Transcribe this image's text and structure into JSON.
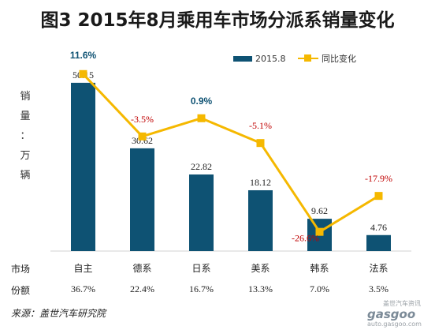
{
  "title": "图3  2015年8月乘用车市场分派系销量变化",
  "ylabel_chars": [
    "销",
    "量",
    "：",
    "万",
    "辆"
  ],
  "legend": {
    "bar_label": "2015.8",
    "line_label": "同比变化"
  },
  "row_labels": {
    "market": "市场",
    "share": "份额"
  },
  "shares": [
    "36.7%",
    "22.4%",
    "16.7%",
    "13.3%",
    "7.0%",
    "3.5%"
  ],
  "source": "来源：盖世汽车研究院",
  "watermark": {
    "brand": "gasgoo",
    "site": "auto.gasgoo.com",
    "cn": "盖世汽车资讯"
  },
  "colors": {
    "bar": "#0e5273",
    "line": "#f5b800",
    "positive_label": "#0e5273",
    "negative_label": "#c00000"
  },
  "chart_data": {
    "type": "bar",
    "title": "图3  2015年8月乘用车市场分派系销量变化",
    "categories": [
      "自主",
      "德系",
      "日系",
      "美系",
      "韩系",
      "法系"
    ],
    "ylabel": "销量：万辆",
    "series": [
      {
        "name": "2015.8",
        "type": "bar",
        "values": [
          50.15,
          30.62,
          22.82,
          18.12,
          9.62,
          4.76
        ],
        "labels": [
          "50.15",
          "30.62",
          "22.82",
          "18.12",
          "9.62",
          "4.76"
        ]
      },
      {
        "name": "同比变化",
        "type": "line",
        "values": [
          11.6,
          -3.5,
          0.9,
          -5.1,
          -26.6,
          -17.9
        ],
        "labels": [
          "11.6%",
          "-3.5%",
          "0.9%",
          "-5.1%",
          "-26.6%",
          "-17.9%"
        ]
      }
    ],
    "legend": "top-right",
    "grid": false
  }
}
